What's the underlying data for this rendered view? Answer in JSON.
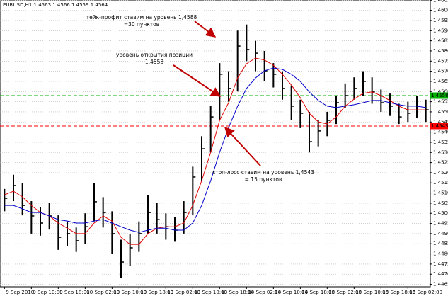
{
  "chart_data": {
    "type": "ohlc",
    "title": "EURUSD,H1 1.4563 1.4566 1.4559 1.4564",
    "categories": [
      "9 Sep 2010",
      null,
      null,
      "9 Sep 10:00",
      null,
      null,
      "9 Sep 18:00",
      null,
      null,
      "10 Sep 02:00",
      null,
      null,
      "10 Sep 10:00",
      null,
      null,
      "10 Sep 18:00",
      null,
      null,
      "13 Sep 02:00",
      null,
      null,
      "13 Sep 10:00",
      null,
      null,
      "13 Sep 18:00",
      null,
      null,
      "14 Sep 02:00",
      null,
      null,
      "14 Sep 10:00",
      null,
      null,
      "14 Sep 18:00",
      null,
      null,
      "15 Sep 02:00",
      null,
      null,
      "15 Sep 10:00",
      null,
      null,
      "15 Sep 18:00",
      null,
      null,
      "16 Sep 02:00",
      null,
      null
    ],
    "high": [
      1.4512,
      1.4519,
      1.4515,
      1.4506,
      1.4503,
      1.4505,
      1.4499,
      1.4496,
      1.4493,
      1.45,
      1.4515,
      1.4508,
      1.4501,
      1.4487,
      1.449,
      1.4496,
      1.4509,
      1.4505,
      1.45,
      1.4498,
      1.4506,
      1.4523,
      1.4538,
      1.4553,
      1.4574,
      1.457,
      1.459,
      1.4593,
      1.4585,
      1.458,
      1.4574,
      1.457,
      1.4563,
      1.4556,
      1.455,
      1.4546,
      1.455,
      1.4558,
      1.4564,
      1.4567,
      1.457,
      1.4567,
      1.4561,
      1.4559,
      1.4554,
      1.4555,
      1.4558,
      1.4556
    ],
    "low": [
      1.4501,
      1.4506,
      1.4499,
      1.449,
      1.4489,
      1.4492,
      1.4482,
      1.4484,
      1.4481,
      1.4485,
      1.4496,
      1.4493,
      1.448,
      1.4468,
      1.4474,
      1.4481,
      1.449,
      1.449,
      1.4487,
      1.4486,
      1.449,
      1.4499,
      1.4516,
      1.453,
      1.4546,
      1.4555,
      1.456,
      1.4575,
      1.457,
      1.4565,
      1.4562,
      1.4556,
      1.4546,
      1.4542,
      1.453,
      1.4533,
      1.4538,
      1.4544,
      1.4552,
      1.4556,
      1.4558,
      1.4554,
      1.455,
      1.4548,
      1.4544,
      1.4545,
      1.4547,
      1.4545
    ],
    "close": [
      1.45074,
      1.45137,
      1.45039,
      1.44987,
      1.44952,
      1.44987,
      1.44882,
      1.449,
      1.44865,
      1.44934,
      1.45057,
      1.45004,
      1.449,
      1.4476,
      1.4483,
      1.449,
      1.45004,
      1.44969,
      1.44934,
      1.44917,
      1.45004,
      1.45179,
      1.45318,
      1.45475,
      1.45685,
      1.45615,
      1.45824,
      1.45807,
      1.45789,
      1.45702,
      1.45685,
      1.45615,
      1.45528,
      1.45493,
      1.45353,
      1.45406,
      1.45458,
      1.45545,
      1.4558,
      1.45615,
      1.4565,
      1.45598,
      1.45545,
      1.45528,
      1.45475,
      1.45493,
      1.45528,
      1.4551
    ],
    "color": "#000000",
    "lines": [
      {
        "color": "#e00000",
        "values": [
          1.45091,
          1.45109,
          1.45081,
          1.45039,
          1.45004,
          1.44987,
          1.44952,
          1.44927,
          1.449,
          1.449,
          1.44952,
          1.44987,
          1.44962,
          1.44882,
          1.44847,
          1.44847,
          1.449,
          1.44927,
          1.44934,
          1.44934,
          1.44952,
          1.45039,
          1.45161,
          1.45301,
          1.45458,
          1.45545,
          1.45667,
          1.45737,
          1.45765,
          1.45755,
          1.4573,
          1.45685,
          1.45632,
          1.4557,
          1.45493,
          1.45451,
          1.4544,
          1.45475,
          1.45528,
          1.45563,
          1.45591,
          1.45598,
          1.4558,
          1.45556,
          1.45528,
          1.4551,
          1.4551,
          1.4551
        ]
      },
      {
        "color": "#0000c8",
        "values": [
          1.45039,
          1.45039,
          1.45022,
          1.45004,
          1.45004,
          1.44987,
          1.44969,
          1.44962,
          1.44952,
          1.44952,
          1.44962,
          1.44969,
          1.44952,
          1.44934,
          1.44917,
          1.44906,
          1.44917,
          1.44927,
          1.44927,
          1.44917,
          1.44917,
          1.44952,
          1.45039,
          1.45161,
          1.45301,
          1.45423,
          1.45528,
          1.45615,
          1.45667,
          1.45702,
          1.45716,
          1.45709,
          1.45685,
          1.4565,
          1.45598,
          1.45556,
          1.45528,
          1.45521,
          1.45528,
          1.45535,
          1.45545,
          1.45556,
          1.45556,
          1.45545,
          1.45535,
          1.45528,
          1.45528,
          1.45521
        ]
      }
    ],
    "levels": [
      {
        "value": 1.4558,
        "color": "#00b000"
      },
      {
        "value": 1.4543,
        "color": "#ff0000"
      }
    ],
    "annotations": [
      {
        "lines": [
          "тейк-профит ставим на уровень 1,4588",
          "=30 пунктов"
        ]
      },
      {
        "lines": [
          "уровень открытия позиции",
          "1,4558"
        ]
      },
      {
        "lines": [
          "стоп-лосс ставим на уровень 1,4543",
          "= 15 пунктов"
        ]
      }
    ],
    "ylim": [
      1.44638,
      1.46051
    ],
    "yticks": [
      1.4465,
      {
        "value": 1.447,
        "label": "1.4470"
      },
      1.4475,
      {
        "value": 1.448,
        "label": "1.4480"
      },
      1.4485,
      {
        "value": 1.449,
        "label": "1.4490"
      },
      1.4495,
      {
        "value": 1.45,
        "label": "1.4500"
      },
      1.4505,
      {
        "value": 1.451,
        "label": "1.4510"
      },
      1.4515,
      {
        "value": 1.452,
        "label": "1.4520"
      },
      1.4525,
      {
        "value": 1.453,
        "label": "1.4530"
      },
      1.4535,
      {
        "value": 1.454,
        "label": "1.4540"
      },
      1.4545,
      {
        "value": 1.455,
        "label": "1.4550"
      },
      1.4555,
      {
        "value": 1.456,
        "label": "1.4560"
      },
      1.4565,
      {
        "value": 1.457,
        "label": "1.4570"
      },
      1.4575,
      {
        "value": 1.458,
        "label": "1.4580"
      },
      1.4585,
      {
        "value": 1.459,
        "label": "1.4590"
      },
      1.4595,
      {
        "value": 1.46,
        "label": "1.4600"
      },
      1.4605
    ],
    "grid": true
  }
}
